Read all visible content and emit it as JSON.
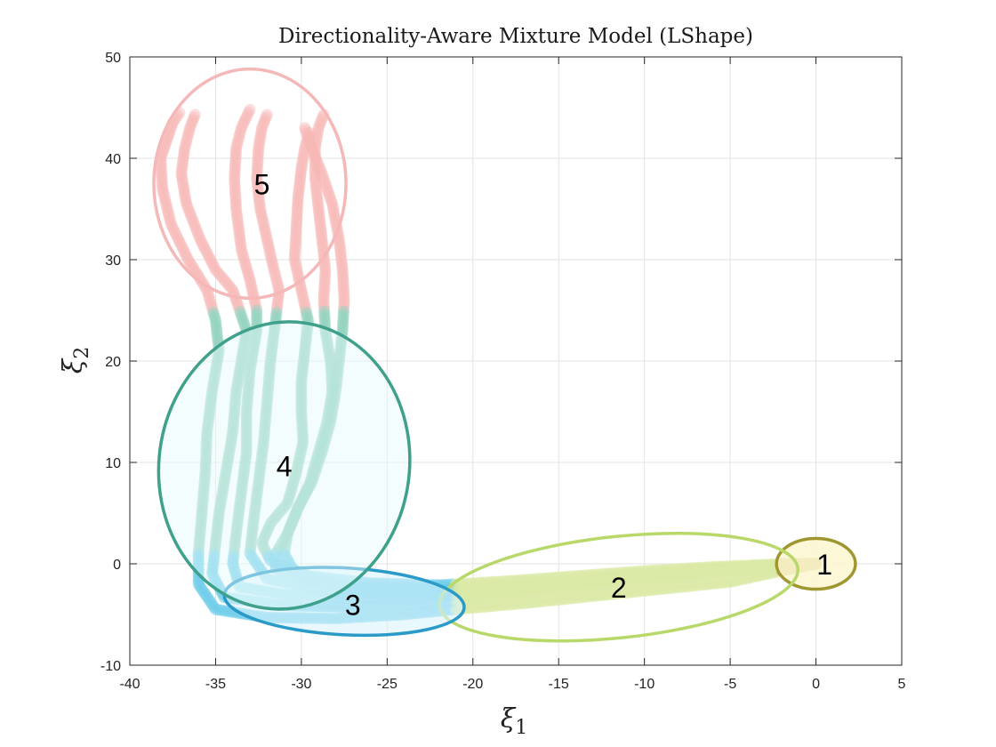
{
  "chart_data": {
    "type": "scatter",
    "title": "Directionality-Aware Mixture Model (LShape)",
    "xlabel": {
      "base": "ξ",
      "sub": "1"
    },
    "ylabel": {
      "base": "ξ",
      "sub": "2"
    },
    "xlim": [
      -40,
      5
    ],
    "ylim": [
      -10,
      50
    ],
    "xticks": [
      "-40",
      "-35",
      "-30",
      "-25",
      "-20",
      "-15",
      "-10",
      "-5",
      "0",
      "5"
    ],
    "yticks": [
      "-10",
      "0",
      "10",
      "20",
      "30",
      "40",
      "50"
    ],
    "grid": true,
    "components": [
      {
        "label": "1",
        "center": [
          0,
          0
        ],
        "rx": 2.3,
        "ry": 2.5,
        "angle": 0,
        "stroke": "#a09630",
        "fill": "#fbf6d0",
        "fill_opacity": 0.85,
        "label_at": [
          0.5,
          0
        ]
      },
      {
        "label": "2",
        "center": [
          -11.5,
          -2.3
        ],
        "rx": 10.5,
        "ry": 5.0,
        "angle": 6,
        "stroke": "#b8d86a",
        "fill": "none",
        "fill_opacity": 0,
        "label_at": [
          -11.5,
          -2.3
        ]
      },
      {
        "label": "3",
        "center": [
          -27.5,
          -3.7
        ],
        "rx": 7.0,
        "ry": 3.3,
        "angle": -3,
        "stroke": "#2a9ac8",
        "fill": "#d8f4fb",
        "fill_opacity": 0.6,
        "label_at": [
          -27.0,
          -4.0
        ]
      },
      {
        "label": "4",
        "center": [
          -31.0,
          9.7
        ],
        "rx": 7.3,
        "ry": 14.2,
        "angle": -8,
        "stroke": "#3fa08c",
        "fill": "#e6fbfb",
        "fill_opacity": 0.45,
        "label_at": [
          -31.0,
          9.7
        ]
      },
      {
        "label": "5",
        "center": [
          -33.0,
          37.5
        ],
        "rx": 5.6,
        "ry": 11.3,
        "angle": 0,
        "stroke": "#f4b8b8",
        "fill": "none",
        "fill_opacity": 0,
        "label_at": [
          -32.3,
          37.5
        ]
      }
    ],
    "trajectories": [
      [
        [
          -37.1,
          44.5
        ],
        [
          -37.5,
          43.5
        ],
        [
          -37.8,
          42.0
        ],
        [
          -38.2,
          40.0
        ],
        [
          -38.1,
          37.0
        ],
        [
          -37.6,
          33.5
        ],
        [
          -36.6,
          30.0
        ],
        [
          -35.5,
          27.0
        ],
        [
          -35.0,
          24.0
        ],
        [
          -34.8,
          21.0
        ],
        [
          -35.2,
          17.0
        ],
        [
          -35.5,
          13.0
        ],
        [
          -35.6,
          9.0
        ],
        [
          -35.8,
          5.0
        ],
        [
          -36.0,
          1.0
        ],
        [
          -36.0,
          -2.0
        ],
        [
          -35.0,
          -4.5
        ],
        [
          -32.0,
          -5.3
        ],
        [
          -28.0,
          -5.4
        ],
        [
          -24.0,
          -5.0
        ],
        [
          -21.0,
          -4.5
        ],
        [
          -17.0,
          -3.9
        ],
        [
          -13.0,
          -3.2
        ],
        [
          -9.0,
          -2.5
        ],
        [
          -5.0,
          -1.8
        ],
        [
          -2.0,
          -0.7
        ],
        [
          0,
          0
        ]
      ],
      [
        [
          -36.2,
          44.3
        ],
        [
          -36.5,
          43.0
        ],
        [
          -36.8,
          41.0
        ],
        [
          -37.0,
          38.5
        ],
        [
          -36.7,
          35.5
        ],
        [
          -35.9,
          32.0
        ],
        [
          -35.0,
          29.0
        ],
        [
          -34.0,
          27.0
        ],
        [
          -33.2,
          23.0
        ],
        [
          -33.5,
          20.0
        ],
        [
          -33.8,
          17.0
        ],
        [
          -34.0,
          13.0
        ],
        [
          -34.4,
          9.0
        ],
        [
          -34.8,
          5.0
        ],
        [
          -35.0,
          2.0
        ],
        [
          -35.2,
          -1.0
        ],
        [
          -34.5,
          -3.3
        ],
        [
          -31.0,
          -4.1
        ],
        [
          -27.0,
          -4.3
        ],
        [
          -23.0,
          -4.0
        ],
        [
          -19.0,
          -3.3
        ],
        [
          -15.0,
          -2.6
        ],
        [
          -11.0,
          -1.9
        ],
        [
          -7.0,
          -1.2
        ],
        [
          -3.0,
          -0.4
        ],
        [
          0,
          0
        ]
      ],
      [
        [
          -33.0,
          44.8
        ],
        [
          -33.5,
          43.0
        ],
        [
          -33.8,
          41.0
        ],
        [
          -33.9,
          38.0
        ],
        [
          -33.8,
          35.0
        ],
        [
          -33.5,
          31.0
        ],
        [
          -33.0,
          28.0
        ],
        [
          -32.6,
          25.0
        ],
        [
          -32.6,
          23.0
        ],
        [
          -33.0,
          19.0
        ],
        [
          -33.2,
          15.0
        ],
        [
          -33.2,
          11.0
        ],
        [
          -33.5,
          7.0
        ],
        [
          -33.8,
          3.0
        ],
        [
          -34.0,
          0.0
        ],
        [
          -33.6,
          -2.3
        ],
        [
          -31.0,
          -3.0
        ],
        [
          -27.0,
          -3.4
        ],
        [
          -23.0,
          -3.3
        ],
        [
          -19.0,
          -2.9
        ],
        [
          -15.0,
          -2.2
        ],
        [
          -11.0,
          -1.6
        ],
        [
          -7.0,
          -1.0
        ],
        [
          -3.0,
          -0.3
        ],
        [
          0,
          0
        ]
      ],
      [
        [
          -32.0,
          44.3
        ],
        [
          -32.3,
          43.0
        ],
        [
          -32.5,
          41.0
        ],
        [
          -32.6,
          38.0
        ],
        [
          -32.4,
          35.0
        ],
        [
          -32.0,
          32.0
        ],
        [
          -31.6,
          29.0
        ],
        [
          -31.3,
          27.0
        ],
        [
          -31.5,
          24.0
        ],
        [
          -31.8,
          20.0
        ],
        [
          -32.0,
          16.0
        ],
        [
          -32.2,
          12.0
        ],
        [
          -32.5,
          8.0
        ],
        [
          -32.8,
          4.0
        ],
        [
          -33.0,
          1.0
        ],
        [
          -32.0,
          -1.5
        ],
        [
          -29.0,
          -2.5
        ],
        [
          -25.0,
          -2.9
        ],
        [
          -21.0,
          -2.7
        ],
        [
          -17.0,
          -2.1
        ],
        [
          -13.0,
          -1.5
        ],
        [
          -9.0,
          -0.9
        ],
        [
          -5.0,
          -0.4
        ],
        [
          -2.0,
          -0.1
        ],
        [
          0,
          0
        ]
      ],
      [
        [
          -29.5,
          42.5
        ],
        [
          -29.8,
          41.0
        ],
        [
          -30.0,
          39.0
        ],
        [
          -30.2,
          36.0
        ],
        [
          -30.3,
          33.0
        ],
        [
          -30.4,
          30.0
        ],
        [
          -30.0,
          27.0
        ],
        [
          -29.6,
          24.0
        ],
        [
          -29.8,
          21.0
        ],
        [
          -30.0,
          18.0
        ],
        [
          -30.0,
          15.0
        ],
        [
          -29.9,
          12.0
        ],
        [
          -30.3,
          9.0
        ],
        [
          -30.8,
          6.0
        ],
        [
          -31.8,
          4.0
        ],
        [
          -32.3,
          2.0
        ],
        [
          -31.8,
          0.3
        ],
        [
          -29.5,
          -1.2
        ],
        [
          -26.0,
          -1.9
        ],
        [
          -22.0,
          -2.1
        ],
        [
          -18.0,
          -1.7
        ],
        [
          -14.0,
          -1.2
        ],
        [
          -10.0,
          -0.7
        ],
        [
          -6.0,
          -0.3
        ],
        [
          -2.0,
          0.0
        ],
        [
          0,
          0
        ]
      ],
      [
        [
          -28.7,
          44.3
        ],
        [
          -29.0,
          43.0
        ],
        [
          -29.2,
          41.0
        ],
        [
          -29.2,
          38.0
        ],
        [
          -29.0,
          35.0
        ],
        [
          -28.8,
          32.0
        ],
        [
          -28.6,
          29.0
        ],
        [
          -28.7,
          26.0
        ],
        [
          -28.6,
          23.0
        ],
        [
          -28.3,
          20.0
        ],
        [
          -28.2,
          17.0
        ],
        [
          -28.5,
          14.0
        ],
        [
          -29.0,
          11.0
        ],
        [
          -29.5,
          8.0
        ],
        [
          -30.2,
          5.5
        ],
        [
          -30.8,
          3.0
        ],
        [
          -31.5,
          1.0
        ],
        [
          -31.5,
          -0.5
        ],
        [
          -29.5,
          -1.8
        ],
        [
          -26.0,
          -2.5
        ],
        [
          -22.0,
          -2.6
        ],
        [
          -18.0,
          -2.2
        ],
        [
          -14.0,
          -1.6
        ],
        [
          -10.0,
          -1.0
        ],
        [
          -6.0,
          -0.5
        ],
        [
          -2.0,
          -0.1
        ],
        [
          0,
          0
        ]
      ],
      [
        [
          -29.8,
          43.0
        ],
        [
          -29.4,
          41.0
        ],
        [
          -28.8,
          38.5
        ],
        [
          -28.2,
          35.5
        ],
        [
          -27.8,
          32.0
        ],
        [
          -27.6,
          29.0
        ],
        [
          -27.5,
          26.0
        ],
        [
          -27.6,
          23.0
        ],
        [
          -27.8,
          20.0
        ],
        [
          -28.0,
          17.0
        ],
        [
          -28.3,
          14.0
        ],
        [
          -28.8,
          11.0
        ],
        [
          -29.4,
          8.0
        ],
        [
          -30.2,
          5.5
        ],
        [
          -30.8,
          3.0
        ],
        [
          -31.0,
          1.0
        ],
        [
          -30.4,
          -0.8
        ],
        [
          -28.0,
          -2.0
        ],
        [
          -24.5,
          -2.6
        ],
        [
          -21.0,
          -2.6
        ],
        [
          -17.0,
          -2.2
        ],
        [
          -13.0,
          -1.6
        ],
        [
          -9.0,
          -1.0
        ],
        [
          -5.0,
          -0.5
        ],
        [
          -2.0,
          -0.1
        ],
        [
          0,
          0
        ]
      ]
    ],
    "trajectory_colors": {
      "c5": "#f7b8b6",
      "c4": "#8ed0bd",
      "c3": "#6ccbea",
      "c2": "#dbeaa6",
      "c1": "#bdb35c"
    }
  }
}
